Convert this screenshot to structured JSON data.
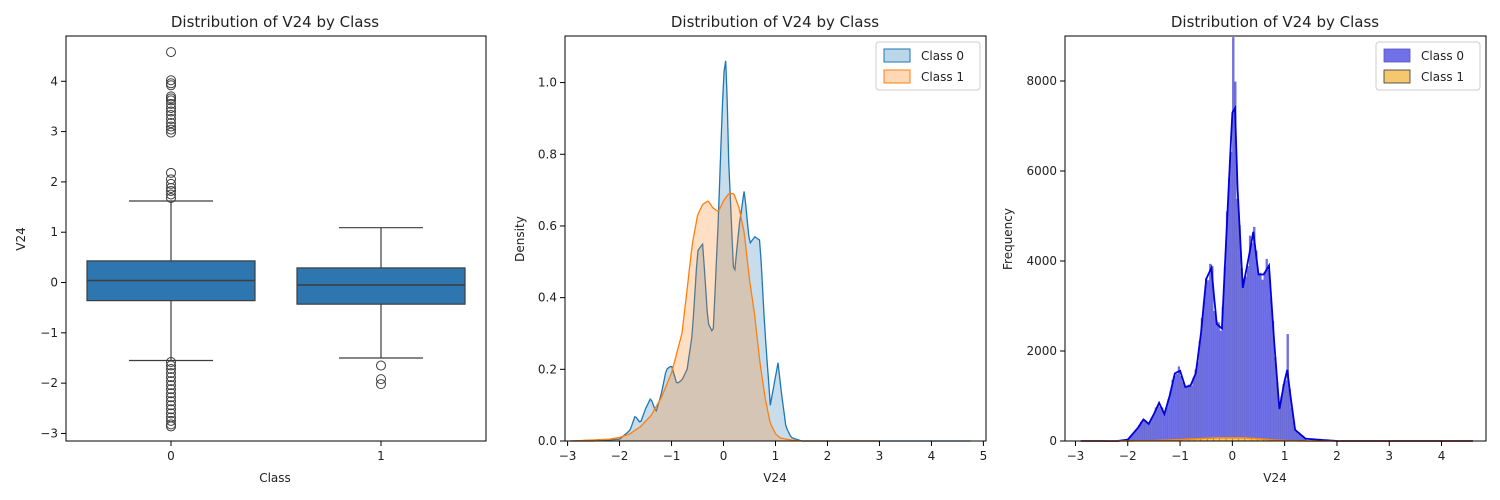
{
  "chart_data": [
    {
      "type": "box",
      "title": "Distribution of V24 by Class",
      "xlabel": "Class",
      "ylabel": "V24",
      "categories": [
        "0",
        "1"
      ],
      "ylim": [
        -3.15,
        4.9
      ],
      "yticks": [
        -3,
        -2,
        -1,
        0,
        1,
        2,
        3,
        4
      ],
      "box_color": "#2e76b0",
      "boxes": [
        {
          "category": "0",
          "whisker_low": -1.55,
          "q1": -0.36,
          "median": 0.04,
          "q3": 0.43,
          "whisker_high": 1.62,
          "outliers": [
            4.58,
            4.02,
            3.96,
            3.92,
            3.7,
            3.66,
            3.62,
            3.55,
            3.47,
            3.4,
            3.33,
            3.25,
            3.17,
            3.1,
            3.04,
            2.98,
            2.18,
            2.05,
            1.96,
            1.88,
            1.82,
            1.75,
            1.68,
            -1.58,
            -1.65,
            -1.72,
            -1.8,
            -1.88,
            -1.96,
            -2.04,
            -2.12,
            -2.2,
            -2.28,
            -2.36,
            -2.44,
            -2.52,
            -2.6,
            -2.68,
            -2.75,
            -2.82,
            -2.86
          ]
        },
        {
          "category": "1",
          "whisker_low": -1.5,
          "q1": -0.43,
          "median": -0.05,
          "q3": 0.29,
          "whisker_high": 1.09,
          "outliers": [
            -1.65,
            -1.92,
            -2.02
          ]
        }
      ]
    },
    {
      "type": "area",
      "title": "Distribution of V24 by Class",
      "xlabel": "V24",
      "ylabel": "Density",
      "xlim": [
        -3.05,
        5.05
      ],
      "ylim": [
        0,
        1.13
      ],
      "xticks": [
        -3,
        -2,
        -1,
        0,
        1,
        2,
        3,
        4,
        5
      ],
      "yticks": [
        0.0,
        0.2,
        0.4,
        0.6,
        0.8,
        1.0
      ],
      "legend_position": "top-right",
      "series": [
        {
          "name": "Class 0",
          "color": "#1f77b4",
          "x": [
            -2.95,
            -2.5,
            -2.0,
            -1.8,
            -1.7,
            -1.6,
            -1.5,
            -1.4,
            -1.3,
            -1.2,
            -1.1,
            -1.0,
            -0.9,
            -0.8,
            -0.7,
            -0.6,
            -0.5,
            -0.4,
            -0.3,
            -0.2,
            -0.1,
            0.0,
            0.05,
            0.1,
            0.2,
            0.3,
            0.4,
            0.5,
            0.6,
            0.7,
            0.8,
            0.9,
            1.0,
            1.05,
            1.1,
            1.2,
            1.3,
            1.5,
            2.0,
            3.0,
            4.0,
            4.75
          ],
          "values": [
            0,
            0,
            0.005,
            0.03,
            0.07,
            0.05,
            0.09,
            0.12,
            0.08,
            0.13,
            0.2,
            0.21,
            0.16,
            0.17,
            0.2,
            0.3,
            0.53,
            0.55,
            0.33,
            0.3,
            0.62,
            1.02,
            1.07,
            0.78,
            0.45,
            0.6,
            0.7,
            0.55,
            0.57,
            0.56,
            0.3,
            0.1,
            0.18,
            0.22,
            0.15,
            0.04,
            0.01,
            0,
            0,
            0,
            0,
            0
          ]
        },
        {
          "name": "Class 1",
          "color": "#ff7f0e",
          "x": [
            -2.95,
            -2.5,
            -2.2,
            -2.0,
            -1.8,
            -1.6,
            -1.4,
            -1.2,
            -1.0,
            -0.8,
            -0.6,
            -0.5,
            -0.4,
            -0.3,
            -0.2,
            -0.1,
            0.0,
            0.1,
            0.2,
            0.3,
            0.4,
            0.5,
            0.6,
            0.7,
            0.8,
            0.9,
            1.0,
            1.1,
            1.3,
            1.5,
            2.0,
            3.0
          ],
          "values": [
            0,
            0.003,
            0.005,
            0.01,
            0.02,
            0.04,
            0.07,
            0.12,
            0.19,
            0.3,
            0.55,
            0.63,
            0.66,
            0.67,
            0.65,
            0.64,
            0.67,
            0.69,
            0.69,
            0.65,
            0.58,
            0.45,
            0.35,
            0.22,
            0.12,
            0.05,
            0.02,
            0.008,
            0.003,
            0,
            0,
            0
          ]
        }
      ]
    },
    {
      "type": "histogram",
      "title": "Distribution of V24 by Class",
      "xlabel": "V24",
      "ylabel": "Frequency",
      "xlim": [
        -3.2,
        4.85
      ],
      "ylim": [
        0,
        9000
      ],
      "xticks": [
        -3,
        -2,
        -1,
        0,
        1,
        2,
        3,
        4
      ],
      "yticks": [
        0,
        2000,
        4000,
        6000,
        8000
      ],
      "legend_position": "top-right",
      "bin_width": 0.04,
      "series": [
        {
          "name": "Class 0",
          "color": "#7070e8",
          "edge_color": "#5656c0",
          "kde_color": "#0000dd",
          "kde_x": [
            -2.9,
            -2.2,
            -2.0,
            -1.8,
            -1.7,
            -1.6,
            -1.5,
            -1.4,
            -1.3,
            -1.2,
            -1.1,
            -1.0,
            -0.9,
            -0.8,
            -0.7,
            -0.6,
            -0.5,
            -0.4,
            -0.3,
            -0.2,
            -0.1,
            0.0,
            0.05,
            0.1,
            0.2,
            0.3,
            0.4,
            0.5,
            0.6,
            0.7,
            0.8,
            0.9,
            1.0,
            1.05,
            1.1,
            1.2,
            1.4,
            2.0,
            3.0,
            4.0,
            4.6
          ],
          "kde_values": [
            0,
            0,
            30,
            300,
            480,
            380,
            600,
            850,
            600,
            1000,
            1500,
            1560,
            1200,
            1230,
            1500,
            2400,
            3600,
            3850,
            2600,
            2500,
            4900,
            7300,
            7400,
            5600,
            3400,
            4000,
            4650,
            3700,
            3700,
            3900,
            2200,
            700,
            1350,
            1580,
            1100,
            250,
            50,
            0,
            0,
            0,
            0
          ],
          "bar_excess": [
            {
              "x": 0.0,
              "value": 1200
            },
            {
              "x": 0.04,
              "value": 900
            },
            {
              "x": 0.4,
              "value": 450
            },
            {
              "x": -0.4,
              "value": 180
            },
            {
              "x": 1.04,
              "value": 850
            },
            {
              "x": 0.7,
              "value": 120
            }
          ]
        },
        {
          "name": "Class 1",
          "color": "#f5c76f",
          "edge_color": "#333333",
          "kde_color": "#ff8c00",
          "kde_x": [
            -2.9,
            -2.0,
            -1.5,
            -1.0,
            -0.5,
            -0.3,
            0.0,
            0.2,
            0.5,
            0.8,
            1.1,
            1.5,
            2.0,
            4.6
          ],
          "kde_values": [
            0,
            2,
            8,
            30,
            60,
            68,
            70,
            70,
            50,
            20,
            5,
            0,
            0,
            0
          ]
        }
      ]
    }
  ]
}
